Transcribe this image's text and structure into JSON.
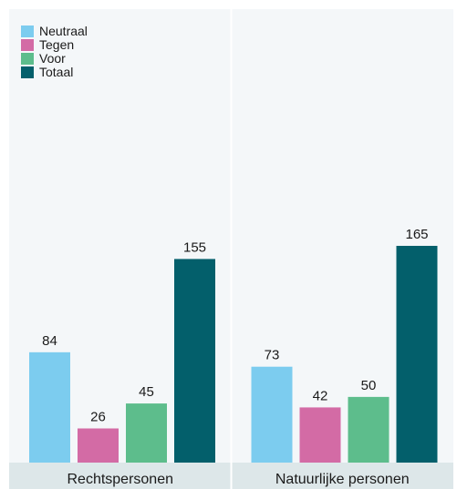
{
  "chart_data": {
    "type": "bar",
    "categories": [
      "Rechtspersonen",
      "Natuurlijke personen"
    ],
    "series": [
      {
        "name": "Neutraal",
        "values": [
          84,
          73
        ]
      },
      {
        "name": "Tegen",
        "values": [
          26,
          42
        ]
      },
      {
        "name": "Voor",
        "values": [
          45,
          50
        ]
      },
      {
        "name": "Totaal",
        "values": [
          155,
          165
        ]
      }
    ],
    "colors": {
      "Neutraal": "#7cccef",
      "Tegen": "#d36ba5",
      "Voor": "#5dbd8c",
      "Totaal": "#035f6b",
      "panel_background": "#f4f7f9",
      "category_strip": "#dde7e9",
      "divider": "#ffffff"
    },
    "legend_position": "top-left",
    "grid": false,
    "ylim": [
      0,
      200
    ],
    "title": "",
    "xlabel": "",
    "ylabel": ""
  }
}
